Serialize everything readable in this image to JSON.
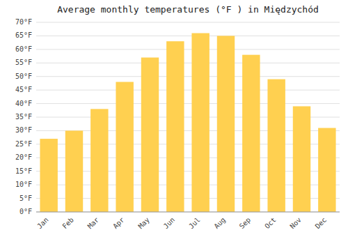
{
  "chart_data": {
    "type": "bar",
    "title": "Average monthly temperatures (°F ) in Międzychód",
    "categories": [
      "Jan",
      "Feb",
      "Mar",
      "Apr",
      "May",
      "Jun",
      "Jul",
      "Aug",
      "Sep",
      "Oct",
      "Nov",
      "Dec"
    ],
    "values": [
      27,
      30,
      38,
      48,
      57,
      63,
      66,
      65,
      58,
      49,
      39,
      31
    ],
    "color": "#FFD050",
    "ylim": [
      0,
      70
    ],
    "yticks": [
      {
        "value": 0,
        "label": "0°F"
      },
      {
        "value": 5,
        "label": "5°F"
      },
      {
        "value": 10,
        "label": "10°F"
      },
      {
        "value": 15,
        "label": "15°F"
      },
      {
        "value": 20,
        "label": "20°F"
      },
      {
        "value": 25,
        "label": "25°F"
      },
      {
        "value": 30,
        "label": "30°F"
      },
      {
        "value": 35,
        "label": "35°F"
      },
      {
        "value": 40,
        "label": "40°F"
      },
      {
        "value": 45,
        "label": "45°F"
      },
      {
        "value": 50,
        "label": "50°F"
      },
      {
        "value": 55,
        "label": "55°F"
      },
      {
        "value": 60,
        "label": "60°F"
      },
      {
        "value": 65,
        "label": "65°F"
      },
      {
        "value": 70,
        "label": "70°F"
      }
    ],
    "grid": true
  }
}
